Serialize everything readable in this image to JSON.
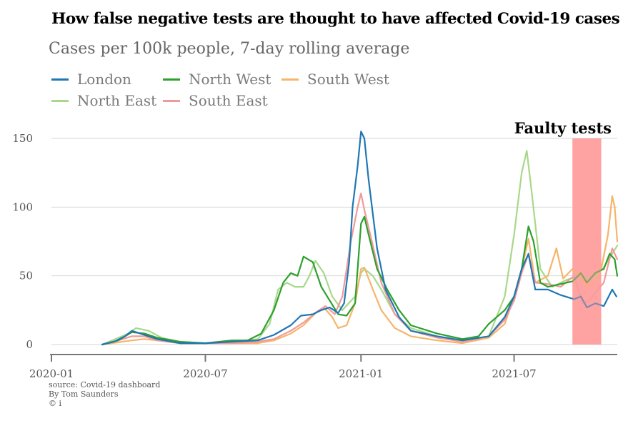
{
  "title": "How false negative tests are thought to have affected Covid-19 cases",
  "subtitle": "Cases per 100k people, 7-day rolling average",
  "source": {
    "line1": "source: Covid-19 dashboard",
    "line2": "By Tom Saunders",
    "line3": "© i"
  },
  "chart_data": {
    "type": "line",
    "x_axis": {
      "ticks": [
        "2020-01",
        "2020-07",
        "2021-01",
        "2021-07"
      ],
      "range": [
        "2020-01-01",
        "2021-10-31"
      ]
    },
    "y_axis": {
      "ticks": [
        0,
        50,
        100,
        150
      ],
      "ylim": [
        -5,
        150
      ]
    },
    "grid": "horizontal",
    "legend_position": "top-left",
    "annotation": {
      "label": "Faulty tests",
      "start": "2021-09-08",
      "end": "2021-10-12",
      "color": "#ff9f9f"
    },
    "series": [
      {
        "name": "London",
        "color": "#1f77b4",
        "points": [
          [
            "2020-03-01",
            0
          ],
          [
            "2020-03-15",
            2
          ],
          [
            "2020-03-28",
            6
          ],
          [
            "2020-04-05",
            10
          ],
          [
            "2020-04-20",
            7
          ],
          [
            "2020-05-05",
            4
          ],
          [
            "2020-06-01",
            1
          ],
          [
            "2020-07-01",
            1
          ],
          [
            "2020-08-01",
            2
          ],
          [
            "2020-09-01",
            3
          ],
          [
            "2020-09-20",
            7
          ],
          [
            "2020-10-10",
            14
          ],
          [
            "2020-10-22",
            21
          ],
          [
            "2020-11-05",
            22
          ],
          [
            "2020-11-15",
            25
          ],
          [
            "2020-11-25",
            27
          ],
          [
            "2020-12-05",
            23
          ],
          [
            "2020-12-12",
            30
          ],
          [
            "2020-12-18",
            60
          ],
          [
            "2020-12-22",
            100
          ],
          [
            "2020-12-28",
            130
          ],
          [
            "2021-01-01",
            155
          ],
          [
            "2021-01-05",
            150
          ],
          [
            "2021-01-10",
            120
          ],
          [
            "2021-01-20",
            70
          ],
          [
            "2021-01-30",
            40
          ],
          [
            "2021-02-15",
            20
          ],
          [
            "2021-03-01",
            10
          ],
          [
            "2021-04-01",
            6
          ],
          [
            "2021-05-01",
            3
          ],
          [
            "2021-06-01",
            6
          ],
          [
            "2021-06-20",
            20
          ],
          [
            "2021-07-01",
            35
          ],
          [
            "2021-07-10",
            55
          ],
          [
            "2021-07-18",
            66
          ],
          [
            "2021-07-26",
            40
          ],
          [
            "2021-08-10",
            40
          ],
          [
            "2021-08-25",
            36
          ],
          [
            "2021-09-10",
            33
          ],
          [
            "2021-09-18",
            35
          ],
          [
            "2021-09-25",
            27
          ],
          [
            "2021-10-05",
            30
          ],
          [
            "2021-10-15",
            28
          ],
          [
            "2021-10-25",
            40
          ],
          [
            "2021-10-30",
            35
          ]
        ]
      },
      {
        "name": "North West",
        "color": "#2ca02c",
        "points": [
          [
            "2020-03-01",
            0
          ],
          [
            "2020-03-20",
            3
          ],
          [
            "2020-04-05",
            9
          ],
          [
            "2020-04-20",
            8
          ],
          [
            "2020-05-05",
            5
          ],
          [
            "2020-06-01",
            2
          ],
          [
            "2020-07-01",
            1
          ],
          [
            "2020-08-01",
            3
          ],
          [
            "2020-08-20",
            3
          ],
          [
            "2020-09-05",
            8
          ],
          [
            "2020-09-20",
            25
          ],
          [
            "2020-10-01",
            45
          ],
          [
            "2020-10-10",
            52
          ],
          [
            "2020-10-18",
            50
          ],
          [
            "2020-10-25",
            64
          ],
          [
            "2020-11-05",
            60
          ],
          [
            "2020-11-15",
            42
          ],
          [
            "2020-11-25",
            32
          ],
          [
            "2020-12-05",
            22
          ],
          [
            "2020-12-15",
            21
          ],
          [
            "2020-12-25",
            30
          ],
          [
            "2021-01-01",
            88
          ],
          [
            "2021-01-05",
            93
          ],
          [
            "2021-01-10",
            80
          ],
          [
            "2021-01-20",
            55
          ],
          [
            "2021-02-01",
            40
          ],
          [
            "2021-02-15",
            25
          ],
          [
            "2021-03-01",
            14
          ],
          [
            "2021-04-01",
            8
          ],
          [
            "2021-05-01",
            4
          ],
          [
            "2021-05-20",
            6
          ],
          [
            "2021-06-01",
            15
          ],
          [
            "2021-06-20",
            25
          ],
          [
            "2021-07-01",
            35
          ],
          [
            "2021-07-10",
            55
          ],
          [
            "2021-07-18",
            86
          ],
          [
            "2021-07-24",
            75
          ],
          [
            "2021-08-01",
            45
          ],
          [
            "2021-08-10",
            42
          ],
          [
            "2021-08-25",
            44
          ],
          [
            "2021-09-08",
            46
          ],
          [
            "2021-09-18",
            52
          ],
          [
            "2021-09-25",
            45
          ],
          [
            "2021-10-05",
            52
          ],
          [
            "2021-10-15",
            55
          ],
          [
            "2021-10-22",
            66
          ],
          [
            "2021-10-28",
            62
          ],
          [
            "2021-10-31",
            50
          ]
        ]
      },
      {
        "name": "South West",
        "color": "#f5b56a",
        "points": [
          [
            "2020-03-01",
            0
          ],
          [
            "2020-04-05",
            3
          ],
          [
            "2020-04-20",
            4
          ],
          [
            "2020-05-05",
            3
          ],
          [
            "2020-06-01",
            1
          ],
          [
            "2020-07-01",
            1
          ],
          [
            "2020-08-01",
            1
          ],
          [
            "2020-09-01",
            1
          ],
          [
            "2020-09-20",
            3
          ],
          [
            "2020-10-10",
            8
          ],
          [
            "2020-10-25",
            14
          ],
          [
            "2020-11-10",
            24
          ],
          [
            "2020-11-18",
            27
          ],
          [
            "2020-11-28",
            20
          ],
          [
            "2020-12-05",
            12
          ],
          [
            "2020-12-15",
            14
          ],
          [
            "2020-12-25",
            30
          ],
          [
            "2021-01-01",
            55
          ],
          [
            "2021-01-05",
            56
          ],
          [
            "2021-01-15",
            40
          ],
          [
            "2021-01-25",
            25
          ],
          [
            "2021-02-10",
            12
          ],
          [
            "2021-03-01",
            6
          ],
          [
            "2021-04-01",
            3
          ],
          [
            "2021-05-01",
            1
          ],
          [
            "2021-06-01",
            5
          ],
          [
            "2021-06-20",
            15
          ],
          [
            "2021-07-01",
            35
          ],
          [
            "2021-07-10",
            55
          ],
          [
            "2021-07-18",
            77
          ],
          [
            "2021-07-26",
            45
          ],
          [
            "2021-08-10",
            50
          ],
          [
            "2021-08-20",
            70
          ],
          [
            "2021-08-28",
            48
          ],
          [
            "2021-09-08",
            55
          ],
          [
            "2021-09-18",
            50
          ],
          [
            "2021-09-25",
            42
          ],
          [
            "2021-10-05",
            45
          ],
          [
            "2021-10-12",
            55
          ],
          [
            "2021-10-20",
            80
          ],
          [
            "2021-10-25",
            108
          ],
          [
            "2021-10-28",
            100
          ],
          [
            "2021-10-31",
            75
          ]
        ]
      },
      {
        "name": "North East",
        "color": "#a8d88a",
        "points": [
          [
            "2020-03-01",
            0
          ],
          [
            "2020-04-01",
            8
          ],
          [
            "2020-04-10",
            12
          ],
          [
            "2020-04-25",
            10
          ],
          [
            "2020-05-10",
            5
          ],
          [
            "2020-06-01",
            2
          ],
          [
            "2020-07-01",
            1
          ],
          [
            "2020-08-01",
            2
          ],
          [
            "2020-09-01",
            4
          ],
          [
            "2020-09-15",
            15
          ],
          [
            "2020-09-25",
            40
          ],
          [
            "2020-10-05",
            45
          ],
          [
            "2020-10-15",
            42
          ],
          [
            "2020-10-25",
            42
          ],
          [
            "2020-11-01",
            50
          ],
          [
            "2020-11-08",
            61
          ],
          [
            "2020-11-18",
            52
          ],
          [
            "2020-11-28",
            35
          ],
          [
            "2020-12-10",
            25
          ],
          [
            "2020-12-25",
            35
          ],
          [
            "2021-01-01",
            52
          ],
          [
            "2021-01-05",
            55
          ],
          [
            "2021-01-15",
            50
          ],
          [
            "2021-01-25",
            40
          ],
          [
            "2021-02-10",
            22
          ],
          [
            "2021-03-01",
            12
          ],
          [
            "2021-04-01",
            6
          ],
          [
            "2021-05-01",
            3
          ],
          [
            "2021-06-01",
            6
          ],
          [
            "2021-06-20",
            35
          ],
          [
            "2021-07-01",
            80
          ],
          [
            "2021-07-10",
            125
          ],
          [
            "2021-07-16",
            141
          ],
          [
            "2021-07-22",
            110
          ],
          [
            "2021-08-01",
            55
          ],
          [
            "2021-08-15",
            42
          ],
          [
            "2021-09-01",
            47
          ],
          [
            "2021-09-15",
            50
          ],
          [
            "2021-09-25",
            48
          ],
          [
            "2021-10-05",
            50
          ],
          [
            "2021-10-15",
            56
          ],
          [
            "2021-10-25",
            66
          ],
          [
            "2021-10-31",
            72
          ]
        ]
      },
      {
        "name": "South East",
        "color": "#f19a9a",
        "points": [
          [
            "2020-03-01",
            0
          ],
          [
            "2020-03-20",
            3
          ],
          [
            "2020-04-05",
            6
          ],
          [
            "2020-04-20",
            6
          ],
          [
            "2020-05-05",
            3
          ],
          [
            "2020-06-01",
            1
          ],
          [
            "2020-07-01",
            1
          ],
          [
            "2020-08-01",
            1
          ],
          [
            "2020-09-01",
            2
          ],
          [
            "2020-09-20",
            4
          ],
          [
            "2020-10-10",
            10
          ],
          [
            "2020-10-25",
            16
          ],
          [
            "2020-11-10",
            24
          ],
          [
            "2020-11-20",
            28
          ],
          [
            "2020-12-01",
            22
          ],
          [
            "2020-12-10",
            35
          ],
          [
            "2020-12-20",
            75
          ],
          [
            "2020-12-28",
            100
          ],
          [
            "2021-01-01",
            110
          ],
          [
            "2021-01-05",
            98
          ],
          [
            "2021-01-12",
            80
          ],
          [
            "2021-01-25",
            45
          ],
          [
            "2021-02-10",
            22
          ],
          [
            "2021-03-01",
            10
          ],
          [
            "2021-04-01",
            5
          ],
          [
            "2021-05-01",
            2
          ],
          [
            "2021-06-01",
            6
          ],
          [
            "2021-06-20",
            18
          ],
          [
            "2021-07-01",
            32
          ],
          [
            "2021-07-10",
            52
          ],
          [
            "2021-07-18",
            66
          ],
          [
            "2021-07-26",
            45
          ],
          [
            "2021-08-10",
            44
          ],
          [
            "2021-08-25",
            42
          ],
          [
            "2021-09-10",
            50
          ],
          [
            "2021-09-20",
            30
          ],
          [
            "2021-09-28",
            32
          ],
          [
            "2021-10-08",
            40
          ],
          [
            "2021-10-15",
            45
          ],
          [
            "2021-10-25",
            70
          ],
          [
            "2021-10-31",
            62
          ]
        ]
      }
    ]
  }
}
